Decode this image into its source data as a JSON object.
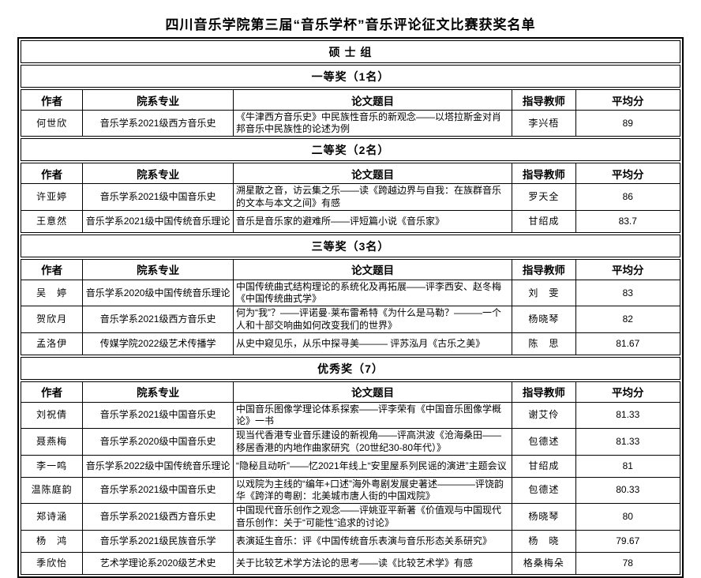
{
  "title": "四川音乐学院第三届“音乐学杯”音乐评论征文比赛获奖名单",
  "group_header": "硕 士 组",
  "columns": [
    "作者",
    "院系专业",
    "论文题目",
    "指导教师",
    "平均分"
  ],
  "sections": [
    {
      "label": "一等奖（1名）",
      "rows": [
        {
          "author": "何世欣",
          "dept": "音乐学系2021级西方音乐史",
          "paper": "《牛津西方音乐史》中民族性音乐的新观念——以塔拉斯金对肖邦音乐中民族性的论述为例",
          "teacher": "李兴梧",
          "score": "89"
        }
      ]
    },
    {
      "label": "二等奖（2名）",
      "rows": [
        {
          "author": "许亚婷",
          "dept": "音乐学系2021级中国音乐史",
          "paper": "溯星散之音，访云集之乐——读《跨越边界与自我：在族群音乐的文本与本文之间》有感",
          "teacher": "罗天全",
          "score": "86"
        },
        {
          "author": "王意然",
          "dept": "音乐学系2021级中国传统音乐理论",
          "paper": "音乐是音乐家的避难所——评短篇小说《音乐家》",
          "teacher": "甘绍成",
          "score": "83.7"
        }
      ]
    },
    {
      "label": "三等奖（3名）",
      "rows": [
        {
          "author": "吴　婷",
          "dept": "音乐学系2020级中国传统音乐理论",
          "paper": "中国传统曲式结构理论的系统化及再拓展——评李西安、赵冬梅《中国传统曲式学》",
          "teacher": "刘　雯",
          "score": "83"
        },
        {
          "author": "贺欣月",
          "dept": "音乐学系2021级西方音乐史",
          "paper": "何为“我”？——评诺曼·莱布雷希特《为什么是马勒？———一个人和十部交响曲如何改变我们的世界》",
          "teacher": "杨晓琴",
          "score": "82"
        },
        {
          "author": "孟洛伊",
          "dept": "传媒学院2022级艺术传播学",
          "paper": "从史中窥见乐，从乐中探寻美——— 评苏泓月《古乐之美》",
          "teacher": "陈　思",
          "score": "81.67"
        }
      ]
    },
    {
      "label": "优秀奖（7）",
      "rows": [
        {
          "author": "刘祝倩",
          "dept": "音乐学系2021级中国音乐史",
          "paper": "中国音乐图像学理论体系探索——评李荣有《中国音乐图像学概论》一书",
          "teacher": "谢艾伶",
          "score": "81.33"
        },
        {
          "author": "聂燕梅",
          "dept": "音乐学系2020级中国音乐史",
          "paper": "现当代香港专业音乐建设的新视角——评高洪波《沧海桑田——移居香港的内地作曲家研究（20世纪30-80年代）》",
          "teacher": "包德述",
          "score": "81.33"
        },
        {
          "author": "李一鸣",
          "dept": "音乐学系2022级中国传统音乐理论",
          "paper": "“隐秘且动听”——忆2021年线上“安里屋系列民谣的演进”主题会议",
          "teacher": "甘绍成",
          "score": "81"
        },
        {
          "author": "温陈庭韵",
          "dept": "音乐学系2021级中国音乐史",
          "paper": "以戏院为主线的“编年+口述”海外粤剧发展史著述————评饶韵华《跨洋的粤剧：北美城市唐人街的中国戏院》",
          "teacher": "包德述",
          "score": "80.33"
        },
        {
          "author": "郑诗涵",
          "dept": "音乐学系2021级西方音乐史",
          "paper": "中国现代音乐创作之观念——评姚亚平新著《价值观与中国现代音乐创作：关于“可能性”追求的讨论》",
          "teacher": "杨晓琴",
          "score": "80"
        },
        {
          "author": "杨　鸿",
          "dept": "音乐学系2021级民族音乐学",
          "paper": "表演延生音乐：评《中国传统音乐表演与音乐形态关系研究》",
          "teacher": "杨　晓",
          "score": "79.67"
        },
        {
          "author": "季欣怡",
          "dept": "艺术学理论系2020级艺术史",
          "paper": "关于比较艺术学方法论的思考——读《比较艺术学》有感",
          "teacher": "格桑梅朵",
          "score": "78"
        }
      ]
    }
  ]
}
